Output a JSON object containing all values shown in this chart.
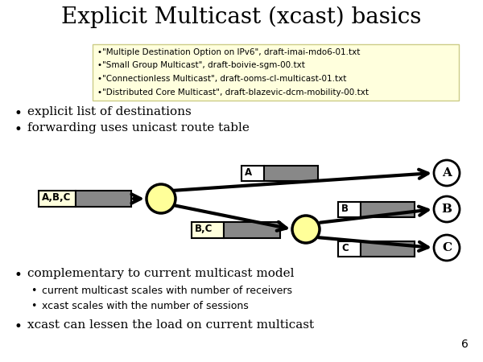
{
  "title": "Explicit Multicast (xcast) basics",
  "title_fontsize": 20,
  "background_color": "#ffffff",
  "yellow_box_color": "#ffffdd",
  "yellow_box_border": "#cccc88",
  "gray_box_color": "#888888",
  "ref_lines": [
    "•\"Multiple Destination Option on IPv6\", draft-imai-mdo6-01.txt",
    "•\"Small Group Multicast\", draft-boivie-sgm-00.txt",
    "•\"Connectionless Multicast\", draft-ooms-cl-multicast-01.txt",
    "•\"Distributed Core Multicast\", draft-blazevic-dcm-mobility-00.txt"
  ],
  "bullet1": "explicit list of destinations",
  "bullet2": "forwarding uses unicast route table",
  "bullet3": "complementary to current multicast model",
  "sub_bullet1": "current multicast scales with number of receivers",
  "sub_bullet2": "xcast scales with the number of sessions",
  "bullet4": "xcast can lessen the load on current multicast",
  "page_number": "6",
  "node1_label": "A,B,C",
  "node2_label": "B,C",
  "dest_A": "A",
  "dest_B": "B",
  "dest_C": "C",
  "label_A": "A",
  "label_B": "B",
  "label_C": "C"
}
